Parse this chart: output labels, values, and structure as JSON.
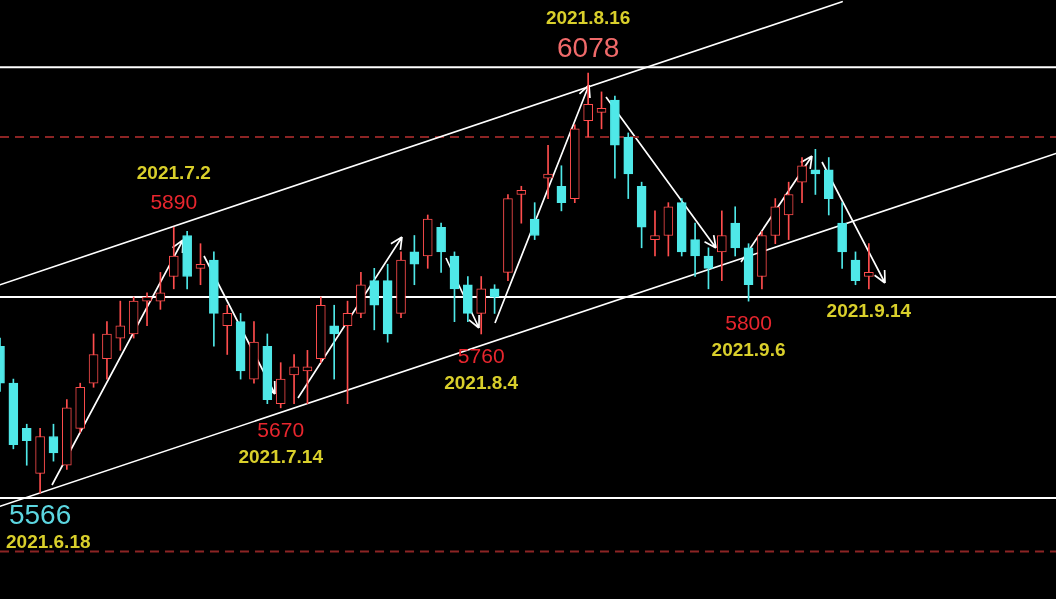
{
  "chart_data": {
    "type": "candlestick",
    "categories": [
      null,
      null,
      null,
      null,
      null,
      null,
      null,
      null,
      null,
      null,
      null,
      null,
      null,
      null,
      null,
      null,
      null,
      null,
      null,
      null,
      null,
      null,
      null,
      null,
      null,
      null,
      null,
      null,
      null,
      null,
      null,
      null,
      null,
      null,
      null,
      null,
      null,
      null,
      null,
      null,
      null,
      null,
      null,
      null,
      null,
      null,
      null,
      null,
      null,
      null,
      null,
      null,
      null,
      null,
      null,
      null,
      null,
      null,
      null,
      null,
      null,
      null,
      null,
      null,
      null,
      null,
      null,
      null,
      null,
      null,
      null,
      null,
      null,
      null,
      null,
      null,
      null,
      null,
      null,
      null
    ],
    "ohlc": [
      [
        5745,
        5755,
        5690,
        5700
      ],
      [
        5700,
        5705,
        5620,
        5625
      ],
      [
        5645,
        5650,
        5600,
        5630
      ],
      [
        5590,
        5645,
        5566,
        5635
      ],
      [
        5635,
        5650,
        5605,
        5615
      ],
      [
        5600,
        5680,
        5595,
        5670
      ],
      [
        5645,
        5700,
        5640,
        5695
      ],
      [
        5700,
        5760,
        5695,
        5735
      ],
      [
        5730,
        5775,
        5705,
        5760
      ],
      [
        5755,
        5800,
        5740,
        5770
      ],
      [
        5760,
        5805,
        5755,
        5800
      ],
      [
        5800,
        5810,
        5770,
        5805
      ],
      [
        5800,
        5835,
        5790,
        5810
      ],
      [
        5830,
        5890,
        5815,
        5855
      ],
      [
        5880,
        5885,
        5815,
        5830
      ],
      [
        5840,
        5870,
        5820,
        5845
      ],
      [
        5850,
        5860,
        5745,
        5785
      ],
      [
        5770,
        5795,
        5735,
        5785
      ],
      [
        5775,
        5785,
        5705,
        5715
      ],
      [
        5705,
        5775,
        5700,
        5750
      ],
      [
        5745,
        5760,
        5675,
        5680
      ],
      [
        5675,
        5725,
        5670,
        5705
      ],
      [
        5710,
        5735,
        5675,
        5720
      ],
      [
        5715,
        5740,
        5675,
        5720
      ],
      [
        5730,
        5805,
        5725,
        5795
      ],
      [
        5770,
        5795,
        5705,
        5760
      ],
      [
        5770,
        5800,
        5675,
        5785
      ],
      [
        5785,
        5835,
        5780,
        5820
      ],
      [
        5825,
        5840,
        5765,
        5795
      ],
      [
        5825,
        5845,
        5750,
        5760
      ],
      [
        5785,
        5860,
        5780,
        5850
      ],
      [
        5860,
        5880,
        5820,
        5845
      ],
      [
        5855,
        5905,
        5840,
        5900
      ],
      [
        5890,
        5895,
        5835,
        5860
      ],
      [
        5855,
        5860,
        5775,
        5815
      ],
      [
        5820,
        5830,
        5775,
        5785
      ],
      [
        5785,
        5830,
        5760,
        5815
      ],
      [
        5815,
        5820,
        5785,
        5805
      ],
      [
        5835,
        5930,
        5825,
        5925
      ],
      [
        5930,
        5940,
        5895,
        5935
      ],
      [
        5900,
        5920,
        5875,
        5880
      ],
      [
        5950,
        5990,
        5925,
        5955
      ],
      [
        5940,
        5965,
        5910,
        5920
      ],
      [
        5925,
        6015,
        5920,
        6010
      ],
      [
        6020,
        6078,
        6000,
        6040
      ],
      [
        6030,
        6055,
        6010,
        6035
      ],
      [
        6045,
        6050,
        5950,
        5990
      ],
      [
        6000,
        6005,
        5925,
        5955
      ],
      [
        5940,
        5945,
        5865,
        5890
      ],
      [
        5875,
        5910,
        5855,
        5880
      ],
      [
        5880,
        5920,
        5855,
        5915
      ],
      [
        5920,
        5925,
        5855,
        5860
      ],
      [
        5875,
        5895,
        5830,
        5855
      ],
      [
        5855,
        5865,
        5815,
        5840
      ],
      [
        5860,
        5910,
        5825,
        5880
      ],
      [
        5895,
        5915,
        5855,
        5865
      ],
      [
        5865,
        5870,
        5800,
        5820
      ],
      [
        5830,
        5885,
        5815,
        5880
      ],
      [
        5880,
        5925,
        5870,
        5915
      ],
      [
        5905,
        5945,
        5875,
        5930
      ],
      [
        5945,
        5975,
        5920,
        5965
      ],
      [
        5960,
        5985,
        5930,
        5955
      ],
      [
        5960,
        5975,
        5905,
        5925
      ],
      [
        5895,
        5920,
        5840,
        5860
      ],
      [
        5850,
        5860,
        5820,
        5825
      ],
      [
        5830,
        5870,
        5815,
        5835
      ],
      null,
      null,
      null,
      null,
      null,
      null,
      null,
      null,
      null,
      null,
      null,
      null,
      null,
      null
    ],
    "colors": [
      "#4fe8e8",
      "#4fe8e8",
      "#4fe8e8",
      "#ff4d4d",
      "#4fe8e8",
      "#ff4d4d",
      "#ff4d4d",
      "#ff4d4d",
      "#ff4d4d",
      "#ff4d4d",
      "#ff4d4d",
      "#ff4d4d",
      "#ff4d4d",
      "#ff4d4d",
      "#4fe8e8",
      "#ff4d4d",
      "#4fe8e8",
      "#ff4d4d",
      "#4fe8e8",
      "#ff4d4d",
      "#4fe8e8",
      "#ff4d4d",
      "#ff4d4d",
      "#ff4d4d",
      "#ff4d4d",
      "#4fe8e8",
      "#ff4d4d",
      "#ff4d4d",
      "#4fe8e8",
      "#4fe8e8",
      "#ff4d4d",
      "#4fe8e8",
      "#ff4d4d",
      "#4fe8e8",
      "#4fe8e8",
      "#4fe8e8",
      "#ff4d4d",
      "#4fe8e8",
      "#ff4d4d",
      "#ff4d4d",
      "#4fe8e8",
      "#ff4d4d",
      "#4fe8e8",
      "#ff4d4d",
      "#ff4d4d",
      "#ff4d4d",
      "#4fe8e8",
      "#4fe8e8",
      "#4fe8e8",
      "#ff4d4d",
      "#ff4d4d",
      "#4fe8e8",
      "#4fe8e8",
      "#4fe8e8",
      "#ff4d4d",
      "#4fe8e8",
      "#4fe8e8",
      "#ff4d4d",
      "#ff4d4d",
      "#ff4d4d",
      "#ff4d4d",
      "#4fe8e8",
      "#4fe8e8",
      "#4fe8e8",
      "#4fe8e8",
      "#ff4d4d",
      null,
      null,
      null,
      null,
      null,
      null,
      null,
      null,
      null,
      null,
      null,
      null,
      null,
      null
    ],
    "series": [
      {
        "type": "line",
        "color": "#ffffff",
        "values": [
          5820,
          null,
          null,
          null,
          null,
          null,
          null,
          null,
          null,
          null,
          null,
          null,
          null,
          null,
          null,
          null,
          null,
          null,
          null,
          null,
          null,
          null,
          null,
          null,
          null,
          null,
          null,
          null,
          null,
          null,
          null,
          null,
          null,
          null,
          null,
          null,
          null,
          null,
          null,
          null,
          null,
          null,
          null,
          null,
          null,
          null,
          null,
          null,
          null,
          null,
          null,
          null,
          null,
          null,
          null,
          null,
          null,
          null,
          null,
          null,
          null,
          null,
          null,
          6165,
          null,
          null,
          null,
          null,
          null,
          null,
          null,
          null,
          null,
          null,
          null,
          null,
          null,
          null,
          null,
          null
        ]
      },
      {
        "type": "line",
        "color": "#ffffff",
        "values": [
          5550,
          null,
          null,
          null,
          null,
          null,
          null,
          null,
          null,
          null,
          null,
          null,
          null,
          null,
          null,
          null,
          null,
          null,
          null,
          null,
          null,
          null,
          null,
          null,
          null,
          null,
          null,
          null,
          null,
          null,
          null,
          null,
          null,
          null,
          null,
          null,
          null,
          null,
          null,
          null,
          null,
          null,
          null,
          null,
          null,
          null,
          null,
          null,
          null,
          null,
          null,
          null,
          null,
          null,
          null,
          null,
          null,
          null,
          null,
          null,
          null,
          null,
          null,
          null,
          null,
          null,
          null,
          null,
          null,
          null,
          null,
          null,
          null,
          null,
          null,
          null,
          null,
          null,
          null,
          5980
        ]
      }
    ],
    "ref_lines": [
      {
        "axis": "y",
        "value": 6085,
        "color": "#ffffff"
      },
      {
        "axis": "y",
        "value": 6000,
        "color": "#8c2424",
        "line_style": "dashed"
      },
      {
        "axis": "y",
        "value": 5805,
        "color": "#ffffff"
      },
      {
        "axis": "y",
        "value": 5560,
        "color": "#ffffff"
      },
      {
        "axis": "y",
        "value": 5495,
        "color": "#8c2424",
        "line_style": "dashed"
      }
    ],
    "tick_labels": false,
    "annotations": [
      {
        "text": "5566",
        "y": 5566
      },
      {
        "text": "2021.6.18",
        "y": 5566
      },
      {
        "text": "5890",
        "y": 5890
      },
      {
        "text": "2021.7.2",
        "y": 5890
      },
      {
        "text": "5670",
        "y": 5670
      },
      {
        "text": "2021.7.14",
        "y": 5670
      },
      {
        "text": "5760",
        "y": 5760
      },
      {
        "text": "2021.8.4",
        "y": 5760
      },
      {
        "text": "6078",
        "y": 6078
      },
      {
        "text": "2021.8.16",
        "y": 6078
      },
      {
        "text": "5800",
        "y": 5800
      },
      {
        "text": "2021.9.6",
        "y": 5800
      },
      {
        "text": "2021.9.14",
        "y": 5815
      }
    ]
  }
}
